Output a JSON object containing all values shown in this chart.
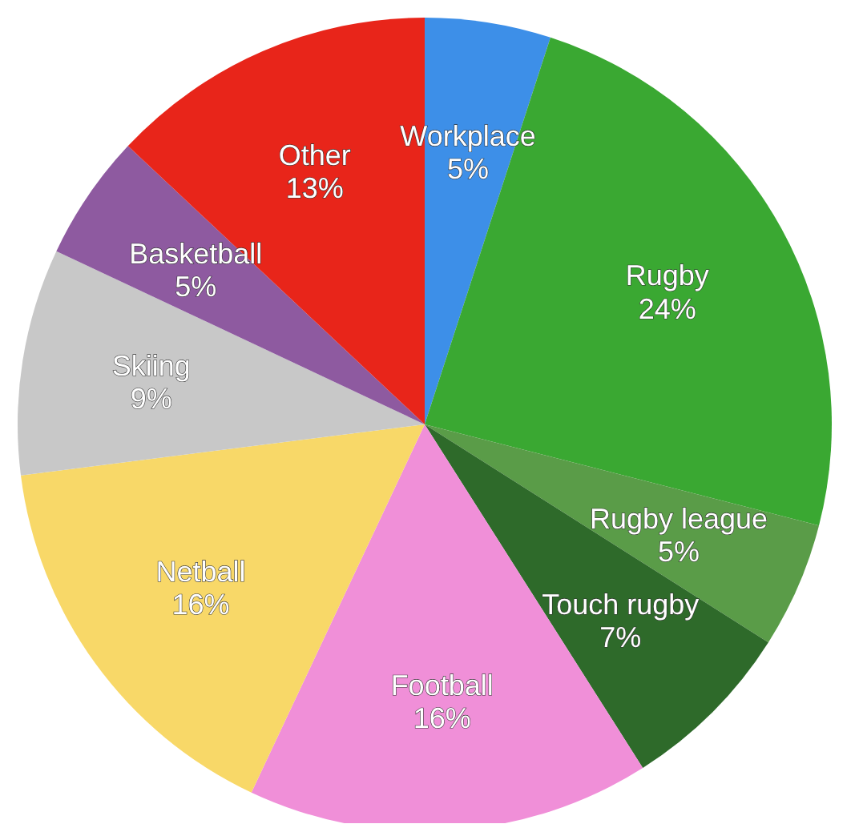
{
  "chart_data": {
    "type": "pie",
    "categories": [
      "Workplace",
      "Rugby",
      "Rugby league",
      "Touch rugby",
      "Football",
      "Netball",
      "Skiing",
      "Basketball",
      "Other"
    ],
    "values": [
      5,
      24,
      5,
      7,
      16,
      16,
      9,
      5,
      13
    ],
    "value_labels": [
      "5%",
      "24%",
      "5%",
      "7%",
      "16%",
      "16%",
      "9%",
      "5%",
      "13%"
    ],
    "colors": [
      "#3d8fe8",
      "#3aa832",
      "#5a9c48",
      "#2e6a2a",
      "#f08fd8",
      "#f8d868",
      "#c8c8c8",
      "#8e5aa0",
      "#e8251a"
    ],
    "legend": false
  }
}
